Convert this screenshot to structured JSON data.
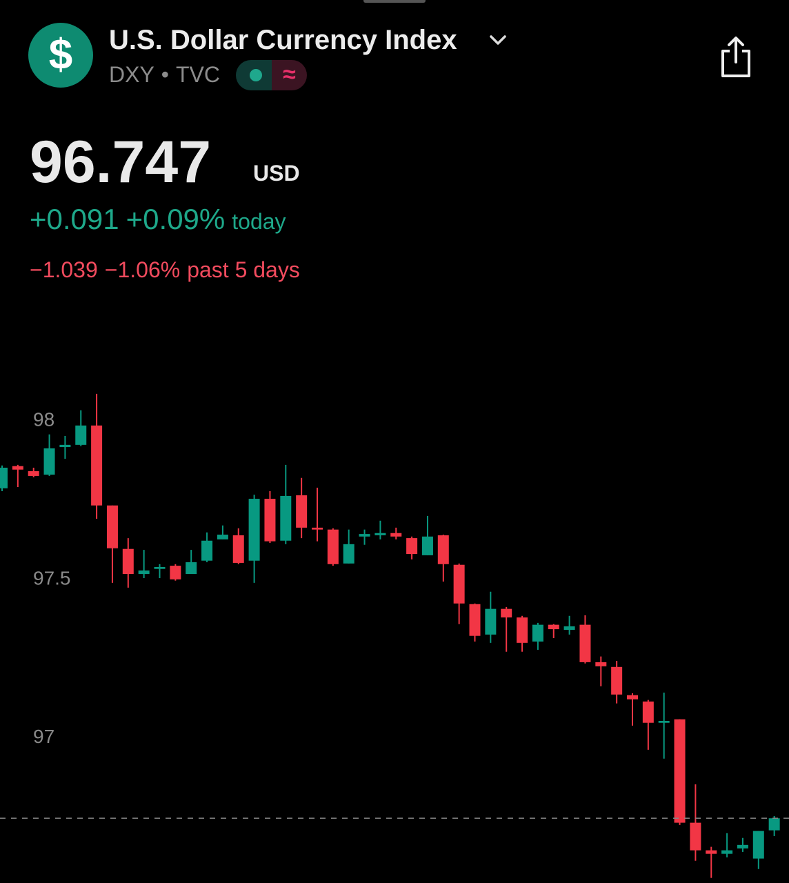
{
  "header": {
    "logo": "$",
    "title": "U.S. Dollar Currency Index",
    "symbol": "DXY",
    "separator": "•",
    "exchange": "TVC",
    "badge": "≈"
  },
  "quote": {
    "price": "96.747",
    "currency": "USD",
    "today": {
      "change": "+0.091",
      "percent": "+0.09%",
      "label": "today"
    },
    "five_days": {
      "change": "−1.039",
      "percent": "−1.06%",
      "label": "past 5 days"
    }
  },
  "chart_data": {
    "type": "candlestick",
    "up_color": "#089981",
    "down_color": "#f23645",
    "open": [
      97.787,
      97.857,
      97.841,
      97.83,
      97.917,
      97.924,
      97.985,
      97.733,
      97.596,
      97.517,
      97.533,
      97.543,
      97.517,
      97.559,
      97.626,
      97.639,
      97.559,
      97.754,
      97.622,
      97.765,
      97.663,
      97.657,
      97.55,
      97.635,
      97.639,
      97.646,
      97.63,
      97.576,
      97.639,
      97.546,
      97.422,
      97.326,
      97.407,
      97.38,
      97.304,
      97.357,
      97.341,
      97.357,
      97.239,
      97.224,
      97.135,
      97.115,
      97.048,
      97.059,
      96.733,
      96.646,
      96.635,
      96.652,
      96.62,
      96.709
    ],
    "high": [
      97.859,
      97.861,
      97.852,
      97.957,
      97.952,
      98.033,
      98.085,
      97.733,
      97.63,
      97.593,
      97.548,
      97.548,
      97.593,
      97.648,
      97.67,
      97.661,
      97.767,
      97.778,
      97.861,
      97.82,
      97.789,
      97.661,
      97.657,
      97.657,
      97.685,
      97.663,
      97.635,
      97.7,
      97.641,
      97.55,
      97.424,
      97.461,
      97.413,
      97.385,
      97.363,
      97.359,
      97.385,
      97.387,
      97.257,
      97.243,
      97.141,
      97.12,
      97.143,
      97.059,
      96.854,
      96.657,
      96.7,
      96.685,
      96.707,
      96.754
    ],
    "low": [
      97.778,
      97.791,
      97.822,
      97.826,
      97.88,
      97.92,
      97.691,
      97.489,
      97.474,
      97.504,
      97.504,
      97.496,
      97.517,
      97.554,
      97.626,
      97.548,
      97.489,
      97.615,
      97.611,
      97.63,
      97.62,
      97.543,
      97.55,
      97.609,
      97.626,
      97.626,
      97.563,
      97.576,
      97.493,
      97.359,
      97.304,
      97.3,
      97.272,
      97.272,
      97.278,
      97.315,
      97.326,
      97.235,
      97.163,
      97.109,
      97.039,
      96.963,
      96.935,
      96.726,
      96.613,
      96.559,
      96.624,
      96.641,
      96.587,
      96.691
    ],
    "close": [
      97.852,
      97.846,
      97.826,
      97.913,
      97.924,
      97.985,
      97.733,
      97.598,
      97.517,
      97.528,
      97.539,
      97.5,
      97.554,
      97.622,
      97.641,
      97.552,
      97.754,
      97.62,
      97.763,
      97.663,
      97.657,
      97.548,
      97.611,
      97.643,
      97.646,
      97.635,
      97.58,
      97.635,
      97.548,
      97.424,
      97.322,
      97.407,
      97.38,
      97.3,
      97.357,
      97.343,
      97.352,
      97.239,
      97.226,
      97.137,
      97.122,
      97.048,
      97.054,
      96.733,
      96.646,
      96.635,
      96.646,
      96.663,
      96.707,
      96.747
    ],
    "ylim": [
      96.543,
      98.152
    ],
    "yticks": [
      97,
      97.5,
      98
    ]
  }
}
